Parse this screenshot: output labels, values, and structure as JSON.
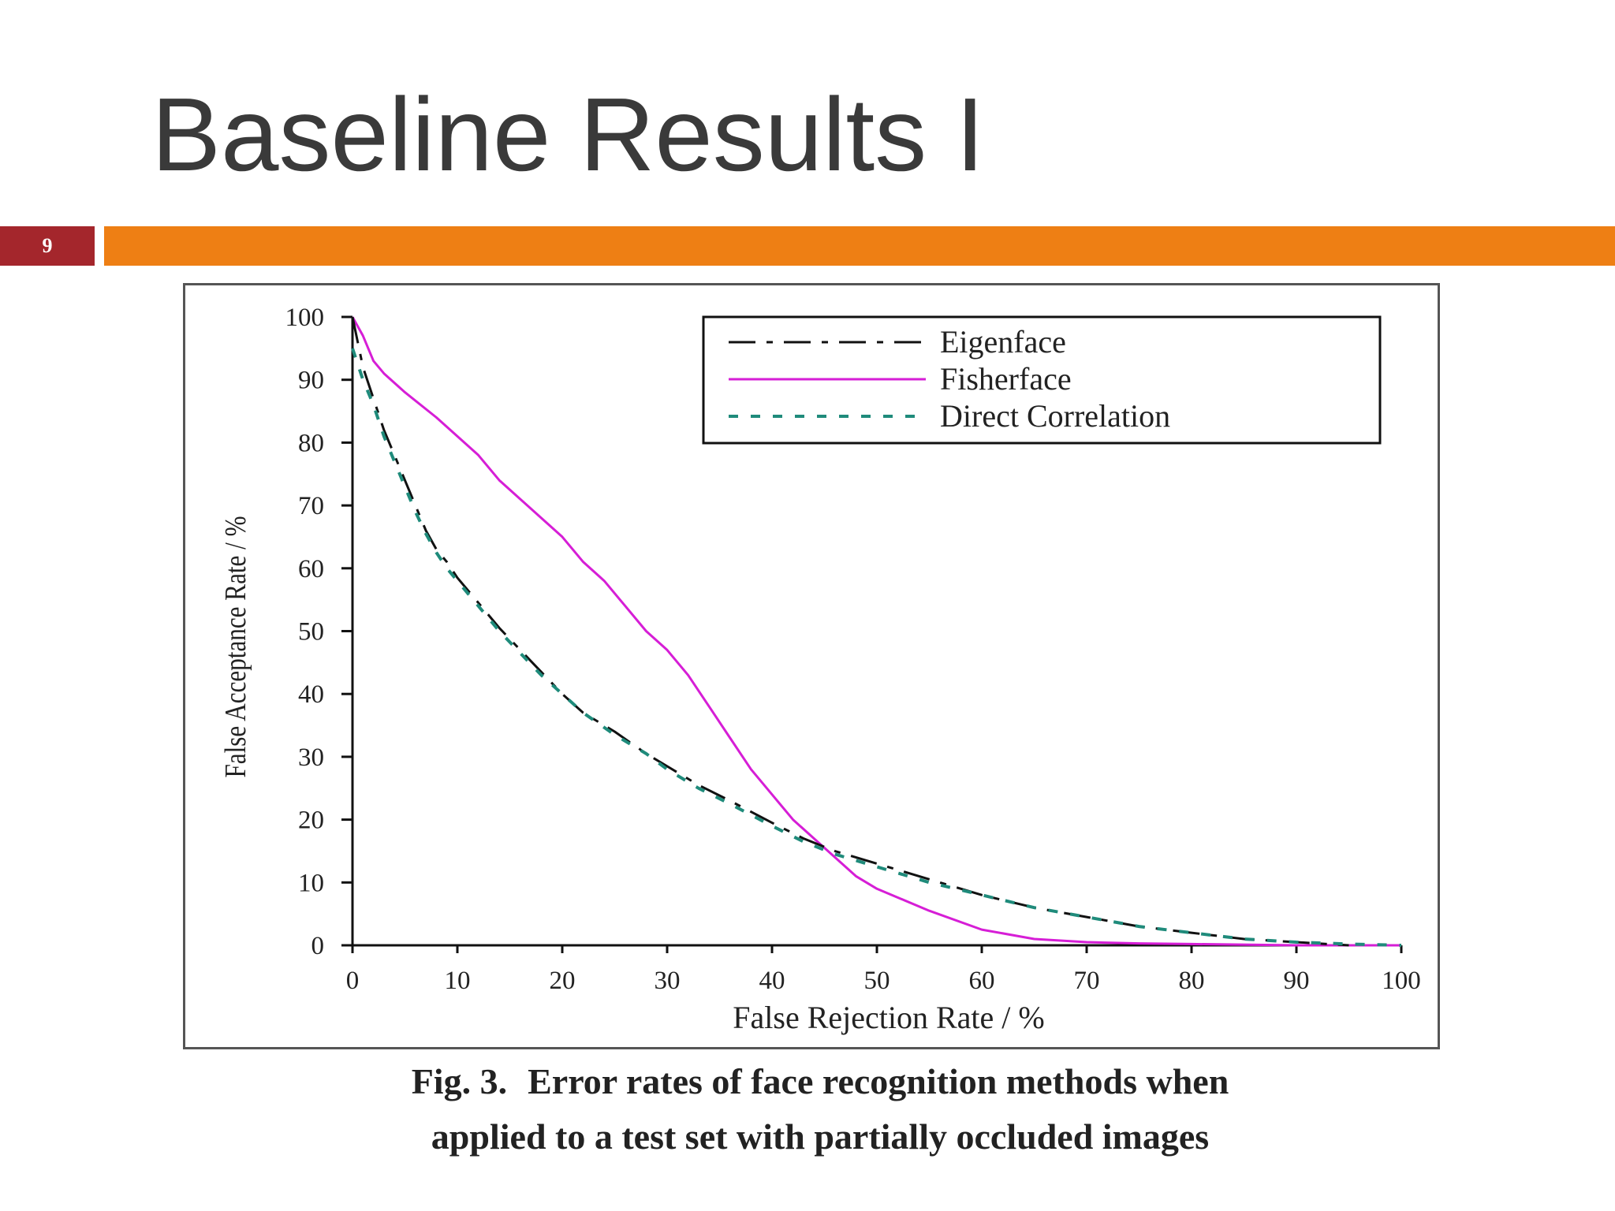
{
  "slide": {
    "title": "Baseline Results I",
    "number": "9",
    "colors": {
      "accent_bar": "#ee7f14",
      "number_box": "#a4262c",
      "title": "#3a3a3a"
    }
  },
  "caption": {
    "label": "Fig. 3.",
    "line1": "Error rates of face recognition methods when",
    "line2": "applied to a test set with partially occluded images"
  },
  "chart_data": {
    "type": "line",
    "title": "",
    "xlabel": "False Rejection Rate / %",
    "ylabel": "False Acceptance Rate / %",
    "xlim": [
      0,
      100
    ],
    "ylim": [
      0,
      100
    ],
    "xticks": [
      0,
      10,
      20,
      30,
      40,
      50,
      60,
      70,
      80,
      90,
      100
    ],
    "yticks": [
      0,
      10,
      20,
      30,
      40,
      50,
      60,
      70,
      80,
      90,
      100
    ],
    "grid": false,
    "legend_position": "top-right",
    "series": [
      {
        "name": "Eigenface",
        "color": "#111111",
        "style": "long-dash",
        "x": [
          0,
          1,
          2,
          3,
          4,
          5,
          6,
          7,
          8,
          9,
          10,
          12,
          14,
          16,
          18,
          20,
          22,
          25,
          28,
          30,
          33,
          36,
          40,
          43,
          46,
          50,
          55,
          60,
          65,
          70,
          75,
          80,
          85,
          90,
          95
        ],
        "y": [
          100,
          92,
          87,
          82,
          78,
          74,
          70,
          66,
          63,
          61,
          58.5,
          54.5,
          50.5,
          47,
          43.5,
          40,
          37,
          34,
          30.5,
          28.5,
          25.5,
          23,
          19.5,
          17,
          15,
          13,
          10.5,
          8,
          6,
          4.5,
          3,
          2,
          1,
          0.5,
          0
        ]
      },
      {
        "name": "Fisherface",
        "color": "#d61ed6",
        "style": "solid",
        "x": [
          0,
          1,
          2,
          3,
          5,
          8,
          10,
          12,
          14,
          16,
          18,
          20,
          22,
          24,
          26,
          28,
          30,
          32,
          34,
          36,
          38,
          40,
          42,
          44,
          46,
          48,
          50,
          55,
          60,
          65,
          70,
          75,
          80,
          90,
          100
        ],
        "y": [
          100,
          97,
          93,
          91,
          88,
          84,
          81,
          78,
          74,
          71,
          68,
          65,
          61,
          58,
          54,
          50,
          47,
          43,
          38,
          33,
          28,
          24,
          20,
          17,
          14,
          11,
          9,
          5.5,
          2.5,
          1,
          0.5,
          0.3,
          0.2,
          0,
          0
        ]
      },
      {
        "name": "Direct Correlation",
        "color": "#1f8b7b",
        "style": "short-dash",
        "x": [
          0,
          1,
          2,
          3,
          4,
          5,
          6,
          7,
          8,
          9,
          10,
          12,
          14,
          16,
          18,
          20,
          22,
          25,
          28,
          30,
          33,
          36,
          40,
          43,
          46,
          50,
          55,
          60,
          65,
          70,
          75,
          80,
          85,
          90,
          95,
          100
        ],
        "y": [
          95,
          90,
          86,
          81,
          77,
          73,
          69,
          65.5,
          62.5,
          60,
          58,
          54,
          50,
          46.5,
          43,
          40,
          37,
          33.5,
          30.5,
          28,
          25,
          22.5,
          19,
          16.5,
          14.5,
          12.5,
          10,
          8,
          6,
          4.5,
          3,
          2,
          1,
          0.5,
          0.2,
          0
        ]
      }
    ]
  }
}
